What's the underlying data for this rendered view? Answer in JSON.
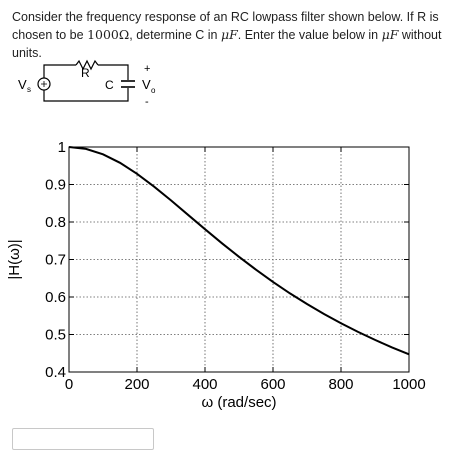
{
  "question": {
    "part1": "Consider the frequency response of an RC lowpass filter shown below. If R is chosen to be ",
    "r_value": "1000Ω",
    "part2": ", determine C in ",
    "unit1": "μF",
    "part3": ". Enter the value below in ",
    "unit2": "μF",
    "part4": " without units."
  },
  "circuit": {
    "source_label": "V",
    "source_sub": "s",
    "resistor_label": "R",
    "capacitor_label": "C",
    "output_label": "V",
    "output_sub": "o",
    "plus": "+",
    "minus": "-"
  },
  "chart_data": {
    "type": "line",
    "x": [
      0,
      50,
      100,
      150,
      200,
      250,
      300,
      350,
      400,
      450,
      500,
      550,
      600,
      650,
      700,
      750,
      800,
      850,
      900,
      950,
      1000
    ],
    "series": [
      {
        "values": [
          1.0,
          0.995,
          0.9806,
          0.9578,
          0.9285,
          0.8944,
          0.8575,
          0.8192,
          0.7809,
          0.7433,
          0.7071,
          0.6727,
          0.6402,
          0.6097,
          0.5812,
          0.5547,
          0.53,
          0.507,
          0.4856,
          0.4657,
          0.4472
        ],
        "color": "#000000"
      }
    ],
    "xlabel": "ω (rad/sec)",
    "ylabel": "|H(ω)|",
    "xlim": [
      0,
      1000
    ],
    "ylim": [
      0.4,
      1.0
    ],
    "xticks": [
      0,
      200,
      400,
      600,
      800,
      1000
    ],
    "xtick_labels": [
      "0",
      "200",
      "400",
      "600",
      "800",
      "1000"
    ],
    "yticks": [
      0.4,
      0.5,
      0.6,
      0.7,
      0.8,
      0.9,
      1.0
    ],
    "ytick_labels": [
      "0.4",
      "0.5",
      "0.6",
      "0.7",
      "0.8",
      "0.9",
      "1"
    ],
    "grid": true,
    "grid_style": "dotted"
  },
  "answer": {
    "value": ""
  }
}
